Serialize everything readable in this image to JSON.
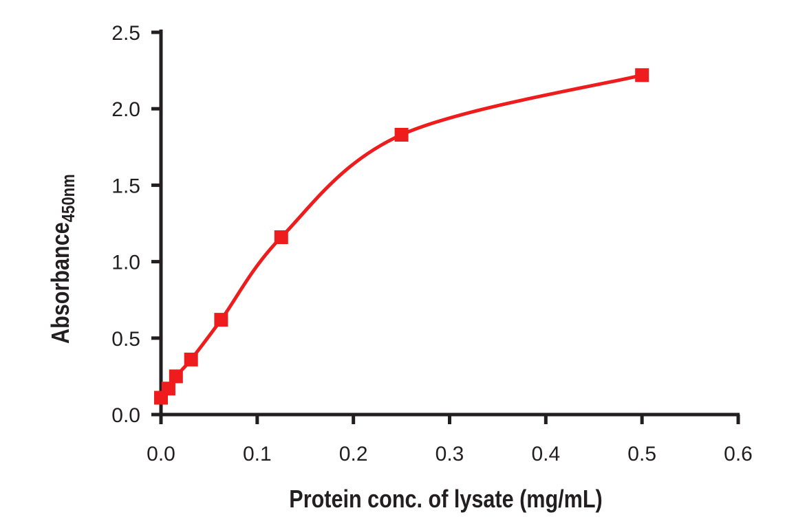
{
  "chart_data": {
    "type": "line",
    "title": "",
    "xlabel": "Protein conc. of lysate (mg/mL)",
    "ylabel": "Absorbance",
    "ylabel_subscript": "450nm",
    "xlim": [
      0,
      0.6
    ],
    "ylim": [
      0,
      2.5
    ],
    "xticks": [
      "0.0",
      "0.1",
      "0.2",
      "0.3",
      "0.4",
      "0.5",
      "0.6"
    ],
    "yticks": [
      "0.0",
      "0.5",
      "1.0",
      "1.5",
      "2.0",
      "2.5"
    ],
    "grid": false,
    "series": [
      {
        "name": "Absorbance",
        "color": "#ee1c1c",
        "marker": "square",
        "x": [
          0,
          0.0078,
          0.0156,
          0.03125,
          0.0625,
          0.125,
          0.25,
          0.5
        ],
        "y": [
          0.11,
          0.17,
          0.25,
          0.36,
          0.62,
          1.16,
          1.83,
          2.22
        ]
      }
    ]
  }
}
